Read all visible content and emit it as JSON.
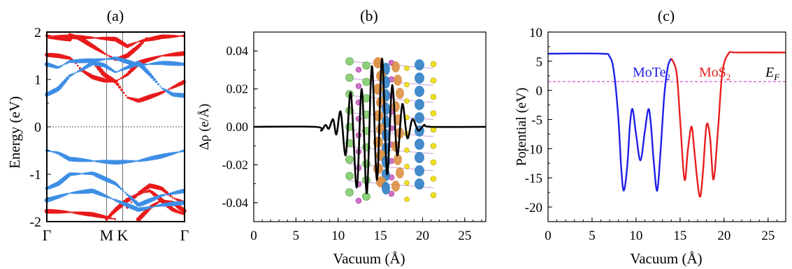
{
  "chart_data": [
    {
      "type": "scatter",
      "panel": "(a)",
      "ylabel": "Energy (eV)",
      "ylim": [
        -2,
        2
      ],
      "yticks": [
        "2",
        "1",
        "0",
        "-1",
        "-2"
      ],
      "xticks": [
        "Γ",
        "M",
        "K",
        "Γ"
      ],
      "fermi_level": 0,
      "series": [
        {
          "color": "#e8191a",
          "bands": [
            [
              [
                0,
                1.88
              ],
              [
                0.5,
                1.87
              ],
              [
                1,
                1.85
              ]
            ],
            [
              [
                0,
                1.52
              ],
              [
                0.5,
                1.5
              ],
              [
                1,
                1.45
              ],
              [
                1.25,
                1.35
              ],
              [
                1.5,
                1.2
              ],
              [
                2,
                1.05
              ],
              [
                2.5,
                0.98
              ],
              [
                3,
                0.96
              ],
              [
                3.5,
                1.1
              ],
              [
                4,
                1.35
              ],
              [
                5,
                1.5
              ],
              [
                6,
                1.55
              ]
            ],
            [
              [
                1,
                1.95
              ],
              [
                1.5,
                1.85
              ],
              [
                2,
                1.7
              ],
              [
                2.5,
                1.55
              ],
              [
                3,
                1.42
              ],
              [
                3.5,
                1.5
              ],
              [
                4,
                1.7
              ],
              [
                4.4,
                1.9
              ]
            ],
            [
              [
                0,
                1.92
              ],
              [
                1,
                1.9
              ],
              [
                2,
                1.88
              ],
              [
                3,
                1.85
              ],
              [
                3.5,
                1.7
              ],
              [
                4,
                1.8
              ],
              [
                5,
                1.9
              ],
              [
                6,
                1.92
              ]
            ],
            [
              [
                2,
                1.4
              ],
              [
                2.5,
                1.1
              ],
              [
                3,
                0.95
              ],
              [
                3.5,
                0.62
              ],
              [
                4,
                0.55
              ],
              [
                5,
                0.72
              ],
              [
                6,
                0.95
              ]
            ],
            [
              [
                0,
                -1.78
              ],
              [
                1,
                -1.8
              ],
              [
                2,
                -1.85
              ],
              [
                2.5,
                -1.9
              ],
              [
                3,
                -1.95
              ]
            ],
            [
              [
                2.6,
                -1.95
              ],
              [
                3,
                -1.75
              ],
              [
                3.5,
                -1.55
              ],
              [
                4,
                -1.42
              ],
              [
                4.5,
                -1.35
              ],
              [
                5,
                -1.55
              ],
              [
                5.5,
                -1.75
              ],
              [
                6,
                -1.85
              ]
            ],
            [
              [
                3.5,
                -1.7
              ],
              [
                4,
                -1.4
              ],
              [
                4.5,
                -1.24
              ],
              [
                5,
                -1.3
              ],
              [
                5.5,
                -1.5
              ],
              [
                6,
                -1.6
              ]
            ],
            [
              [
                4,
                -1.95
              ],
              [
                4.5,
                -1.7
              ],
              [
                5,
                -1.55
              ],
              [
                5.5,
                -1.6
              ],
              [
                6,
                -1.78
              ]
            ]
          ]
        },
        {
          "color": "#3e8ee5",
          "bands": [
            [
              [
                0,
                0.68
              ],
              [
                0.5,
                0.8
              ],
              [
                1,
                1.08
              ],
              [
                1.5,
                1.2
              ],
              [
                2,
                1.35
              ],
              [
                2.5,
                1.3
              ],
              [
                3,
                1.15
              ],
              [
                3.5,
                1.25
              ],
              [
                4,
                1.35
              ],
              [
                4.5,
                1.1
              ],
              [
                5,
                0.82
              ],
              [
                5.5,
                0.68
              ],
              [
                6,
                0.66
              ]
            ],
            [
              [
                0,
                1.32
              ],
              [
                0.5,
                1.25
              ],
              [
                1,
                1.38
              ],
              [
                2,
                1.4
              ],
              [
                3,
                1.45
              ],
              [
                4,
                1.3
              ],
              [
                5,
                1.35
              ],
              [
                6,
                1.32
              ]
            ],
            [
              [
                0,
                -0.5
              ],
              [
                0.5,
                -0.55
              ],
              [
                1,
                -0.68
              ],
              [
                2,
                -0.72
              ],
              [
                3,
                -0.75
              ],
              [
                4,
                -0.72
              ],
              [
                5,
                -0.62
              ],
              [
                6,
                -0.5
              ]
            ],
            [
              [
                0,
                -1.3
              ],
              [
                0.5,
                -1.2
              ],
              [
                1,
                -1.0
              ],
              [
                2,
                -0.98
              ],
              [
                3,
                -1.2
              ],
              [
                4,
                -1.65
              ],
              [
                4.5,
                -1.55
              ],
              [
                5,
                -1.45
              ],
              [
                6,
                -1.35
              ]
            ],
            [
              [
                0,
                -1.55
              ],
              [
                1,
                -1.4
              ],
              [
                2,
                -1.35
              ],
              [
                3,
                -1.55
              ],
              [
                4,
                -1.75
              ],
              [
                5,
                -1.65
              ],
              [
                6,
                -1.6
              ]
            ]
          ]
        }
      ]
    },
    {
      "type": "line",
      "panel": "(b)",
      "xlabel": "Vacuum (Å)",
      "ylabel": "Δρ (e/Å)",
      "xlim": [
        0,
        27.5
      ],
      "ylim": [
        -0.05,
        0.05
      ],
      "xticks": [
        0,
        5,
        10,
        15,
        20,
        25
      ],
      "yticks": [
        "0.04",
        "0.02",
        "0.00",
        "-0.02",
        "-0.04"
      ],
      "series": [
        {
          "color": "#000000",
          "x": [
            0,
            7.3,
            8,
            8.5,
            8.9,
            9.4,
            9.8,
            10.3,
            10.9,
            11.5,
            12.2,
            12.8,
            13.4,
            14,
            14.6,
            15.2,
            15.8,
            16.4,
            17,
            17.6,
            18.2,
            18.8,
            19.5,
            20.2,
            21,
            27.5
          ],
          "y": [
            0,
            0,
            -0.002,
            0.001,
            -0.001,
            0.004,
            -0.004,
            0.008,
            -0.015,
            0.018,
            -0.032,
            0.02,
            -0.035,
            0.032,
            -0.028,
            0.036,
            -0.025,
            0.022,
            -0.015,
            0.012,
            -0.006,
            0.004,
            -0.002,
            0.001,
            0,
            0
          ]
        }
      ]
    },
    {
      "type": "line",
      "panel": "(c)",
      "xlabel": "Vacuum (Å)",
      "ylabel": "Potential (eV)",
      "xlim": [
        0,
        27
      ],
      "ylim": [
        -22.5,
        10
      ],
      "xticks": [
        0,
        5,
        10,
        15,
        20,
        25
      ],
      "yticks": [
        10,
        5,
        0,
        -5,
        -10,
        -15,
        -20
      ],
      "fermi_level": 1.5,
      "fermi_label": "E",
      "fermi_label_sub": "F",
      "layer_labels": [
        {
          "text": "MoTe",
          "sub": "2",
          "color": "#1f1fe8"
        },
        {
          "text": "MoS",
          "sub": "2",
          "color": "#e81f1f"
        }
      ],
      "series": [
        {
          "color": "#1f1fe8",
          "x": [
            0,
            6,
            7,
            7.5,
            8,
            8.3,
            8.6,
            9,
            9.3,
            9.6,
            10,
            10.5,
            11,
            11.4,
            11.7,
            12,
            12.4,
            12.8,
            13.2,
            13.6,
            14
          ],
          "y": [
            6.3,
            6.3,
            5.8,
            3,
            -5,
            -13,
            -17.2,
            -13,
            -6,
            -3.2,
            -7.5,
            -12,
            -7,
            -3.2,
            -6,
            -12,
            -17.2,
            -10,
            -1,
            4,
            5.5
          ]
        },
        {
          "color": "#e81f1f",
          "x": [
            14,
            14.6,
            15,
            15.5,
            15.9,
            16.3,
            16.6,
            17,
            17.3,
            17.6,
            18,
            18.4,
            18.8,
            19.3,
            19.8,
            20.5,
            21.5,
            27
          ],
          "y": [
            5.5,
            3,
            -5,
            -15.3,
            -10,
            -6.2,
            -10,
            -16,
            -18.2,
            -14,
            -6,
            -8,
            -15.3,
            -7,
            3,
            6.3,
            6.5,
            6.5
          ]
        }
      ]
    }
  ]
}
